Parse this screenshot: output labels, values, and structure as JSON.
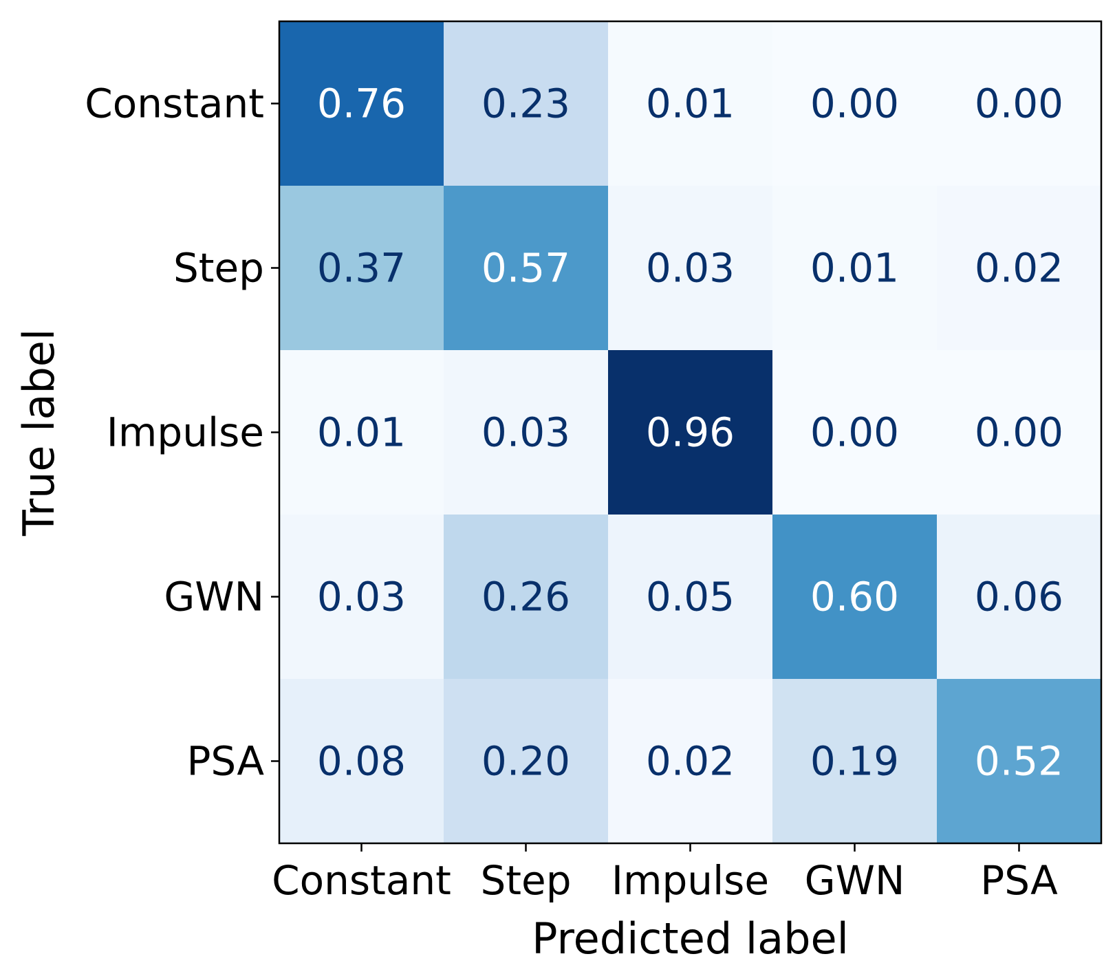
{
  "chart_data": {
    "type": "heatmap",
    "title": "",
    "xlabel": "Predicted label",
    "ylabel": "True label",
    "x_categories": [
      "Constant",
      "Step",
      "Impulse",
      "GWN",
      "PSA"
    ],
    "y_categories": [
      "Constant",
      "Step",
      "Impulse",
      "GWN",
      "PSA"
    ],
    "values": [
      [
        0.76,
        0.23,
        0.01,
        0.0,
        0.0
      ],
      [
        0.37,
        0.57,
        0.03,
        0.01,
        0.02
      ],
      [
        0.01,
        0.03,
        0.96,
        0.0,
        0.0
      ],
      [
        0.03,
        0.26,
        0.05,
        0.6,
        0.06
      ],
      [
        0.08,
        0.2,
        0.02,
        0.19,
        0.52
      ]
    ],
    "value_format": "0.00",
    "colormap": "Blues",
    "vmin": 0.0,
    "vmax": 0.96,
    "colorbar": false,
    "colors": {
      "dark_text": "#08306b",
      "light_text": "#ffffff",
      "axis": "#000000"
    }
  }
}
